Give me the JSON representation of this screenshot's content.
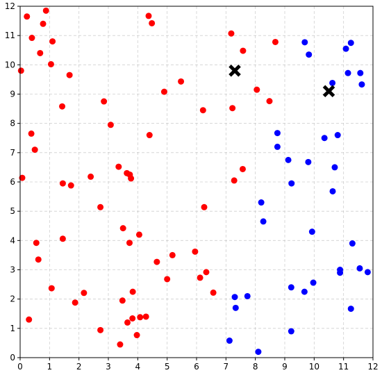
{
  "chart_data": {
    "type": "scatter",
    "title": "",
    "xlabel": "",
    "ylabel": "",
    "xlim": [
      0,
      12
    ],
    "ylim": [
      0,
      12
    ],
    "xticks": [
      0,
      1,
      2,
      3,
      4,
      5,
      6,
      7,
      8,
      9,
      10,
      11,
      12
    ],
    "yticks": [
      0,
      1,
      2,
      3,
      4,
      5,
      6,
      7,
      8,
      9,
      10,
      11,
      12
    ],
    "grid": true,
    "series": [
      {
        "color": "#ff0000",
        "marker": "circle",
        "points": [
          [
            0.23,
            11.65
          ],
          [
            0.88,
            11.85
          ],
          [
            0.4,
            10.92
          ],
          [
            0.78,
            11.4
          ],
          [
            1.1,
            10.8
          ],
          [
            0.68,
            10.4
          ],
          [
            1.05,
            10.02
          ],
          [
            0.03,
            9.8
          ],
          [
            1.68,
            9.65
          ],
          [
            1.43,
            8.58
          ],
          [
            2.85,
            8.75
          ],
          [
            3.08,
            7.95
          ],
          [
            0.38,
            7.65
          ],
          [
            0.5,
            7.1
          ],
          [
            0.07,
            6.14
          ],
          [
            1.45,
            5.95
          ],
          [
            1.73,
            5.88
          ],
          [
            2.4,
            6.18
          ],
          [
            3.35,
            6.52
          ],
          [
            3.63,
            6.3
          ],
          [
            3.73,
            6.25
          ],
          [
            3.77,
            6.12
          ],
          [
            2.73,
            5.14
          ],
          [
            3.5,
            4.42
          ],
          [
            1.45,
            4.06
          ],
          [
            0.55,
            3.92
          ],
          [
            0.62,
            3.35
          ],
          [
            3.72,
            3.92
          ],
          [
            4.05,
            4.2
          ],
          [
            1.07,
            2.37
          ],
          [
            2.17,
            2.21
          ],
          [
            1.87,
            1.88
          ],
          [
            0.3,
            1.3
          ],
          [
            2.73,
            0.94
          ],
          [
            3.48,
            1.95
          ],
          [
            3.83,
            2.25
          ],
          [
            3.65,
            1.2
          ],
          [
            3.82,
            1.34
          ],
          [
            4.08,
            1.38
          ],
          [
            4.28,
            1.4
          ],
          [
            3.4,
            0.45
          ],
          [
            3.97,
            0.77
          ],
          [
            4.65,
            3.27
          ],
          [
            5.0,
            2.68
          ],
          [
            5.18,
            3.5
          ],
          [
            5.95,
            3.62
          ],
          [
            6.12,
            2.73
          ],
          [
            6.33,
            2.92
          ],
          [
            6.57,
            2.22
          ],
          [
            6.26,
            5.14
          ],
          [
            4.37,
            11.67
          ],
          [
            4.48,
            11.42
          ],
          [
            5.47,
            9.43
          ],
          [
            4.9,
            9.08
          ],
          [
            4.4,
            7.6
          ],
          [
            6.22,
            8.45
          ],
          [
            7.18,
            11.07
          ],
          [
            7.58,
            10.48
          ],
          [
            7.22,
            8.52
          ],
          [
            8.05,
            9.15
          ],
          [
            8.48,
            8.76
          ],
          [
            8.68,
            10.78
          ],
          [
            7.57,
            6.44
          ],
          [
            7.28,
            6.05
          ]
        ]
      },
      {
        "color": "#0000ff",
        "marker": "circle",
        "points": [
          [
            9.68,
            10.77
          ],
          [
            9.82,
            10.35
          ],
          [
            11.25,
            10.75
          ],
          [
            11.08,
            10.55
          ],
          [
            11.15,
            9.72
          ],
          [
            11.57,
            9.72
          ],
          [
            11.62,
            9.33
          ],
          [
            10.62,
            9.38
          ],
          [
            8.75,
            7.67
          ],
          [
            8.75,
            7.2
          ],
          [
            10.35,
            7.5
          ],
          [
            10.8,
            7.6
          ],
          [
            9.12,
            6.75
          ],
          [
            9.8,
            6.68
          ],
          [
            10.7,
            6.5
          ],
          [
            9.23,
            5.95
          ],
          [
            10.63,
            5.68
          ],
          [
            8.2,
            5.3
          ],
          [
            8.27,
            4.65
          ],
          [
            9.93,
            4.3
          ],
          [
            11.3,
            3.9
          ],
          [
            10.88,
            3.0
          ],
          [
            10.88,
            2.9
          ],
          [
            11.55,
            3.05
          ],
          [
            11.82,
            2.92
          ],
          [
            9.22,
            2.4
          ],
          [
            9.67,
            2.25
          ],
          [
            9.97,
            2.56
          ],
          [
            7.3,
            2.07
          ],
          [
            7.73,
            2.1
          ],
          [
            7.33,
            1.7
          ],
          [
            11.25,
            1.67
          ],
          [
            7.12,
            0.58
          ],
          [
            9.22,
            0.9
          ],
          [
            8.1,
            0.2
          ]
        ]
      },
      {
        "color": "#000000",
        "marker": "x",
        "points": [
          [
            7.3,
            9.8
          ],
          [
            10.5,
            9.1
          ]
        ]
      }
    ]
  }
}
